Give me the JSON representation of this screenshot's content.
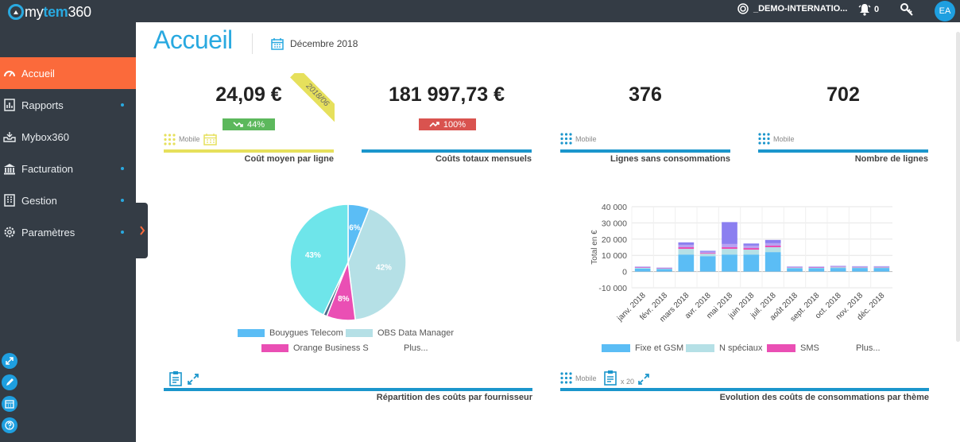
{
  "header": {
    "logo_prefix": "my",
    "logo_bold": "tem",
    "logo_suffix": "360",
    "account": "_DEMO-INTERNATIO...",
    "notifications_count": "0",
    "avatar_initials": "EA"
  },
  "sidebar": {
    "items": [
      {
        "label": "Accueil",
        "icon": "gauge-icon",
        "active": true
      },
      {
        "label": "Rapports",
        "icon": "report-icon"
      },
      {
        "label": "Mybox360",
        "icon": "box-icon"
      },
      {
        "label": "Facturation",
        "icon": "bank-icon"
      },
      {
        "label": "Gestion",
        "icon": "building-icon"
      },
      {
        "label": "Paramètres",
        "icon": "gear-icon"
      }
    ],
    "tools": [
      "expand-icon",
      "pencil-icon",
      "calendar-icon",
      "help-icon"
    ]
  },
  "main": {
    "title": "Accueil",
    "period": "Décembre 2018"
  },
  "kpis": [
    {
      "value": "24,09 €",
      "label": "Coût moyen par ligne",
      "tag": "Mobile",
      "badge": "44%",
      "badge_color": "#5cb85c",
      "ribbon": "2018/06",
      "bar_color": "#e6e05c"
    },
    {
      "value": "181 997,73 €",
      "label": "Coûts totaux mensuels",
      "badge": "100%",
      "badge_color": "#d9534f",
      "bar_color": "#1b96cc"
    },
    {
      "value": "376",
      "label": "Lignes sans consommations",
      "tag": "Mobile",
      "bar_color": "#1b96cc"
    },
    {
      "value": "702",
      "label": "Nombre de lignes",
      "tag": "Mobile",
      "bar_color": "#1b96cc"
    }
  ],
  "pie_panel": {
    "label": "Répartition des coûts par fournisseur",
    "legend": [
      {
        "name": "Bouygues Telecom",
        "color": "#5bbdf5"
      },
      {
        "name": "OBS Data Manager",
        "color": "#b5e0e6"
      },
      {
        "name": "Orange Business S",
        "color": "#ea4fb4"
      }
    ],
    "more": "Plus..."
  },
  "bar_panel": {
    "label": "Evolution des coûts de consommations par thème",
    "tag": "Mobile",
    "count": "x 20",
    "legend": [
      {
        "name": "Fixe et GSM",
        "color": "#5bbdf5"
      },
      {
        "name": "N spéciaux",
        "color": "#b5e0e6"
      },
      {
        "name": "SMS",
        "color": "#ea4fb4"
      }
    ],
    "more": "Plus..."
  },
  "chart_data": [
    {
      "type": "pie",
      "slices": [
        {
          "name": "Bouygues Telecom",
          "value": 6,
          "label": "6%",
          "color": "#5bbdf5"
        },
        {
          "name": "OBS Data Manager",
          "value": 42,
          "label": "42%",
          "color": "#b5e0e6"
        },
        {
          "name": "Orange Business S",
          "value": 8,
          "label": "8%",
          "color": "#ea4fb4"
        },
        {
          "name": "",
          "value": 1,
          "label": "",
          "color": "#4a6b8a"
        },
        {
          "name": "",
          "value": 43,
          "label": "43%",
          "color": "#6ee5ea"
        }
      ]
    },
    {
      "type": "bar",
      "ylabel": "Total en €",
      "ylim": [
        -10000,
        40000
      ],
      "yticks": [
        "40 000",
        "30 000",
        "20 000",
        "10 000",
        "0",
        "-10 000"
      ],
      "ytick_values": [
        40000,
        30000,
        20000,
        10000,
        0,
        -10000
      ],
      "categories": [
        "janv. 2018",
        "févr. 2018",
        "mars 2018",
        "avr. 2018",
        "mai 2018",
        "juin 2018",
        "juil. 2018",
        "août 2018",
        "sept. 2018",
        "oct. 2018",
        "nov. 2018",
        "déc. 2018"
      ],
      "series": [
        {
          "name": "Fixe et GSM",
          "color": "#5bbdf5",
          "values": [
            1800,
            1500,
            10500,
            9500,
            10500,
            10500,
            12000,
            2000,
            2000,
            2200,
            2200,
            2200
          ]
        },
        {
          "name": "N spéciaux",
          "color": "#b5e0e6",
          "values": [
            500,
            400,
            3500,
            1500,
            3500,
            3000,
            3000,
            500,
            400,
            600,
            500,
            500
          ]
        },
        {
          "name": "SMS",
          "color": "#ea4fb4",
          "values": [
            200,
            100,
            1000,
            500,
            1000,
            1000,
            1000,
            100,
            100,
            100,
            100,
            100
          ]
        },
        {
          "color": "#b7a2f2",
          "values": [
            300,
            200,
            1500,
            800,
            2000,
            1500,
            1500,
            300,
            300,
            400,
            300,
            300
          ]
        },
        {
          "color": "#8b7ff0",
          "values": [
            200,
            200,
            1500,
            500,
            13500,
            1300,
            2000,
            200,
            200,
            200,
            200,
            200
          ]
        }
      ]
    }
  ]
}
